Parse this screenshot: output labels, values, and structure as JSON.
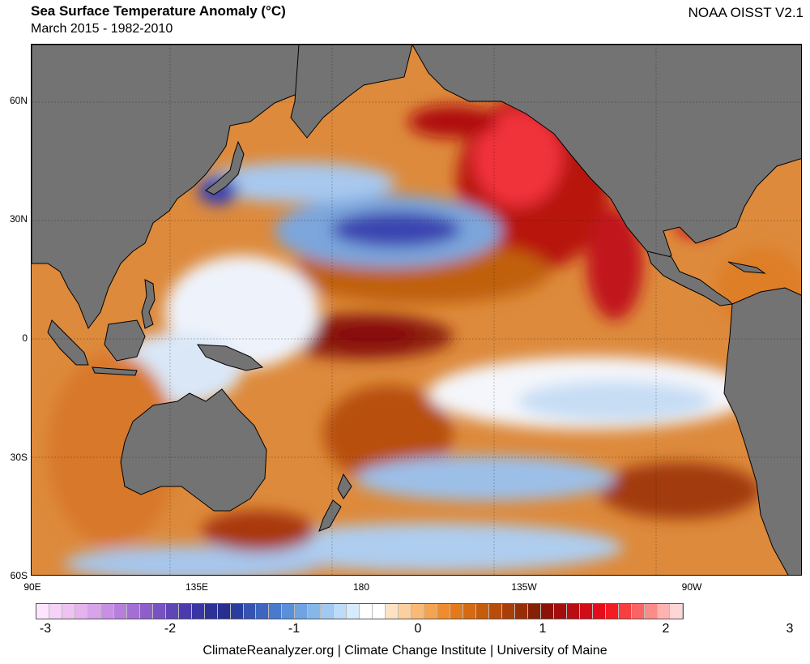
{
  "header": {
    "title": "Sea Surface Temperature Anomaly (°C)",
    "subtitle": "March 2015 - 1982-2010",
    "product": "NOAA OISST V2.1"
  },
  "axes": {
    "latitude_labels": [
      "60N",
      "30N",
      "0",
      "30S",
      "60S"
    ],
    "longitude_labels": [
      "90E",
      "135E",
      "180",
      "135W",
      "90W"
    ]
  },
  "colorbar": {
    "tick_labels": [
      "-3",
      "-2",
      "-1",
      "0",
      "1",
      "2",
      "3"
    ],
    "colors": [
      "#fde6fd",
      "#f6d2f7",
      "#eec3f2",
      "#e5b3ee",
      "#d9a2ea",
      "#c890e3",
      "#b77fdc",
      "#a46fd4",
      "#8d5fcb",
      "#7752c1",
      "#5f46b7",
      "#4b3cae",
      "#3a35a6",
      "#2e3197",
      "#27308f",
      "#2a3d9d",
      "#3653b0",
      "#3e66c0",
      "#4a7ace",
      "#5a8fd9",
      "#6fa3e1",
      "#87b7e9",
      "#a1c9f1",
      "#bcdcf7",
      "#d6ebfb",
      "#ffffff",
      "#ffffff",
      "#fde3c3",
      "#fcd09e",
      "#f9ba76",
      "#f5a34f",
      "#ee8d30",
      "#e27a1c",
      "#d56a12",
      "#c75b0c",
      "#b84d0a",
      "#a83f08",
      "#972f06",
      "#862005",
      "#8c1106",
      "#a30d0c",
      "#b90c13",
      "#cf0c18",
      "#e30d1c",
      "#f31c23",
      "#f83e3f",
      "#fb6462",
      "#fc8c89",
      "#fdb3b1",
      "#fdd6d5"
    ]
  },
  "credit": "ClimateReanalyzer.org | Climate Change Institute | University of Maine",
  "colors": {
    "land": "#737373",
    "ocean_base": "#e08a3a"
  }
}
